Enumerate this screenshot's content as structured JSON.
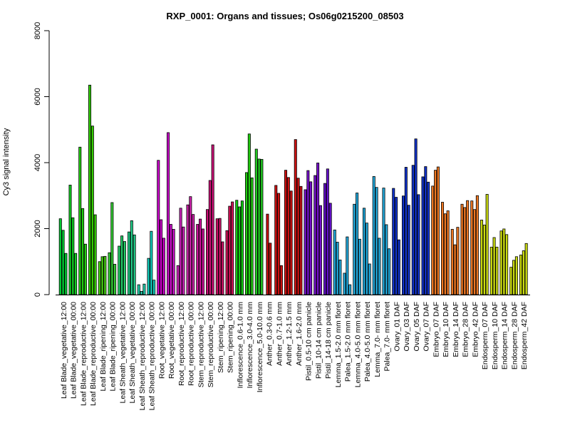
{
  "chart_data": {
    "type": "bar",
    "title": "RXP_0001: Organs and tissues; Os06g0215200_08503",
    "ylabel": "Cy3 signal intensity",
    "xlabel": "",
    "ylim": [
      0,
      8000
    ],
    "yticks": [
      0,
      2000,
      4000,
      6000,
      8000
    ],
    "grid": false,
    "legend": "none",
    "groups": [
      {
        "label": "Leaf Blade_vegetative_12:00",
        "color": "#00cc33",
        "values": [
          2300,
          1950,
          1250
        ]
      },
      {
        "label": "Leaf Blade_vegetative_00:00",
        "color": "#11cc22",
        "values": [
          3320,
          2330,
          1250
        ]
      },
      {
        "label": "Leaf Blade_reproductive_12:00",
        "color": "#22cc11",
        "values": [
          4470,
          2610,
          1530
        ]
      },
      {
        "label": "Leaf Blade_reproductive_00:00",
        "color": "#33cc00",
        "values": [
          6350,
          5110,
          2420
        ]
      },
      {
        "label": "Leaf Blade_ripening_12:00",
        "color": "#44cc11",
        "values": [
          1000,
          1150,
          1160
        ]
      },
      {
        "label": "Leaf Blade_ripening_00:00",
        "color": "#33cc33",
        "values": [
          1270,
          2790,
          920
        ]
      },
      {
        "label": "Leaf Sheath_vegetative_12:00",
        "color": "#22cc66",
        "values": [
          1470,
          1780,
          1610
        ]
      },
      {
        "label": "Leaf Sheath_vegetative_00:00",
        "color": "#22cc88",
        "values": [
          1900,
          2240,
          1810
        ]
      },
      {
        "label": "Leaf Sheath_reproductive_12:00",
        "color": "#22ccaa",
        "values": [
          300,
          100,
          320
        ]
      },
      {
        "label": "Leaf Sheath_reproductive_00:00",
        "color": "#11ccbb",
        "values": [
          1100,
          1920,
          440
        ]
      },
      {
        "label": "Root_vegetative_12:00",
        "color": "#cc00cc",
        "values": [
          4070,
          2270,
          1710
        ]
      },
      {
        "label": "Root_vegetative_00:00",
        "color": "#cc11cc",
        "values": [
          4910,
          2130,
          1980
        ]
      },
      {
        "label": "Root_reproductive_12:00",
        "color": "#cc22bb",
        "values": [
          880,
          2620,
          2050
        ]
      },
      {
        "label": "Root_reproductive_00:00",
        "color": "#cc22aa",
        "values": [
          2720,
          2970,
          2430
        ]
      },
      {
        "label": "Stem_reproductive_12:00",
        "color": "#cc1199",
        "values": [
          2130,
          2290,
          1990
        ]
      },
      {
        "label": "Stem_reproductive_00:00",
        "color": "#cc1177",
        "values": [
          2580,
          3460,
          4540
        ]
      },
      {
        "label": "Stem_ripening_12:00",
        "color": "#cc1166",
        "values": [
          2300,
          2310,
          1600
        ]
      },
      {
        "label": "Stem_ripening_00:00",
        "color": "#cc1155",
        "values": [
          1940,
          2680,
          2810
        ]
      },
      {
        "label": "Inflorescence_0.6-1.0 mm",
        "color": "#11cc11",
        "values": [
          2860,
          2660,
          2840
        ]
      },
      {
        "label": "Inflorescence_3.0-4.0 mm",
        "color": "#22cc11",
        "values": [
          3700,
          4870,
          3540
        ]
      },
      {
        "label": "Inflorescence_5.0-10.0 mm",
        "color": "#22cc22",
        "values": [
          4410,
          4110,
          4100
        ]
      },
      {
        "label": "Anther_0.3-0.6 mm",
        "color": "#cc1111",
        "values": [
          2440,
          1560
        ]
      },
      {
        "label": "Anther_0.7-1.0 mm",
        "color": "#cc1111",
        "values": [
          3310,
          3070,
          880
        ]
      },
      {
        "label": "Anther_1.2-1.5 mm",
        "color": "#cc1111",
        "values": [
          3770,
          3550,
          3140
        ]
      },
      {
        "label": "Anther_1.6-2.0 mm",
        "color": "#cc1111",
        "values": [
          4700,
          3530,
          3280
        ]
      },
      {
        "label": "Pistil_0.5-10 cm panicle",
        "color": "#7711cc",
        "values": [
          3180,
          3760,
          3420
        ]
      },
      {
        "label": "Pistil_10-14 cm panicle",
        "color": "#7711cc",
        "values": [
          3610,
          3990,
          2700
        ]
      },
      {
        "label": "Pistil_14-18 cm panicle",
        "color": "#6611cc",
        "values": [
          3370,
          3810,
          2770
        ]
      },
      {
        "label": "Lemma_1.5-2.0 mm floret",
        "color": "#22aadd",
        "values": [
          1960,
          1590,
          1050
        ]
      },
      {
        "label": "Palea_1.5-2.0 mm floret",
        "color": "#22aadd",
        "values": [
          650,
          1750,
          300
        ]
      },
      {
        "label": "Lemma_4.0-5.0 mm floret",
        "color": "#22aadd",
        "values": [
          2740,
          3080,
          1680
        ]
      },
      {
        "label": "Palea_4.0-5.0 mm floret",
        "color": "#22aadd",
        "values": [
          2620,
          2170,
          930
        ]
      },
      {
        "label": "Lemma_7.0- mm floret",
        "color": "#22aadd",
        "values": [
          3580,
          3250,
          1710
        ]
      },
      {
        "label": "Palea_7.0- mm floret",
        "color": "#22aadd",
        "values": [
          3230,
          2120,
          1390
        ]
      },
      {
        "label": "Ovary_01 DAF",
        "color": "#1133cc",
        "values": [
          3220,
          2950,
          1660
        ]
      },
      {
        "label": "Ovary_03 DAF",
        "color": "#1133cc",
        "values": [
          2990,
          3860,
          2710
        ]
      },
      {
        "label": "Ovary_05 DAF",
        "color": "#1133cc",
        "values": [
          3920,
          4720,
          3030
        ]
      },
      {
        "label": "Ovary_07 DAF",
        "color": "#1133cc",
        "values": [
          3570,
          3880,
          3410
        ]
      },
      {
        "label": "Embryo_07 DAF",
        "color": "#ee7722",
        "values": [
          3290,
          3770,
          3870
        ]
      },
      {
        "label": "Embryo_10 DAF",
        "color": "#ee7722",
        "values": [
          2800,
          2450,
          2540
        ]
      },
      {
        "label": "Embryo_14 DAF",
        "color": "#ee7722",
        "values": [
          1980,
          1510,
          2040
        ]
      },
      {
        "label": "Embryo_28 DAF",
        "color": "#ee7722",
        "values": [
          2740,
          2640,
          2850
        ]
      },
      {
        "label": "Embryo_42 DAF",
        "color": "#ee7722",
        "values": [
          2840,
          2580,
          3000
        ]
      },
      {
        "label": "Endosperm_07 DAF",
        "color": "#ccdd11",
        "values": [
          2260,
          2110,
          3040
        ]
      },
      {
        "label": "Endosperm_10 DAF",
        "color": "#ccdd11",
        "values": [
          1440,
          1730,
          1440
        ]
      },
      {
        "label": "Endosperm_14 DAF",
        "color": "#ccdd11",
        "values": [
          1930,
          1990,
          1820
        ]
      },
      {
        "label": "Endosperm_28 DAF",
        "color": "#ccdd11",
        "values": [
          830,
          1040,
          1150
        ]
      },
      {
        "label": "Endosperm_42 DAF",
        "color": "#ccdd11",
        "values": [
          1200,
          1330,
          1550
        ]
      }
    ]
  }
}
